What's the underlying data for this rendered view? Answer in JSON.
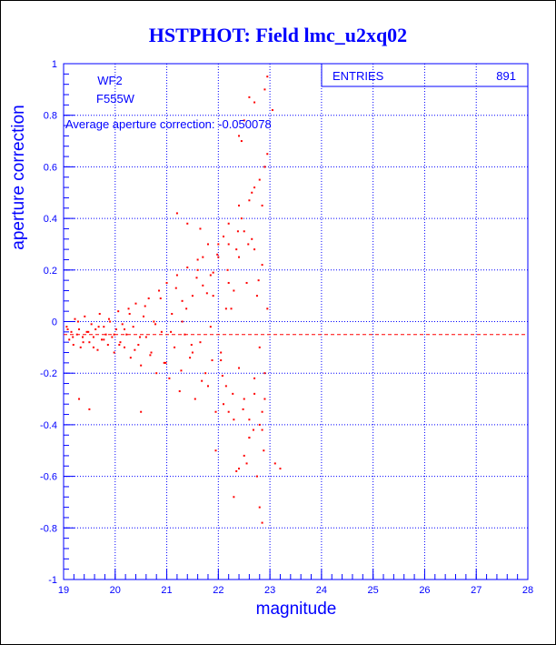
{
  "chart_data": {
    "type": "scatter",
    "title": "HSTPHOT: Field lmc_u2xq02",
    "xlabel": "magnitude",
    "ylabel": "aperture correction",
    "xlim": [
      19,
      28
    ],
    "ylim": [
      -1,
      1
    ],
    "x_ticks": [
      "19",
      "20",
      "21",
      "22",
      "23",
      "24",
      "25",
      "26",
      "27",
      "28"
    ],
    "y_ticks": [
      "-1",
      "-0.8",
      "-0.6",
      "-0.4",
      "-0.2",
      "0",
      "0.2",
      "0.4",
      "0.6",
      "0.8",
      "1"
    ],
    "grid": true,
    "annotations": {
      "chip": "WF2",
      "filter": "F555W",
      "average_text": "Average aperture correction: -0.050078"
    },
    "stats_box": {
      "label": "ENTRIES",
      "value": "891"
    },
    "average_line": -0.050078,
    "point_color": "#ff0000",
    "points_x": [
      19.06,
      19.11,
      19.15,
      19.19,
      19.22,
      19.26,
      19.3,
      19.33,
      19.37,
      19.41,
      19.45,
      19.5,
      19.54,
      19.58,
      19.62,
      19.66,
      19.7,
      19.74,
      19.78,
      19.82,
      19.86,
      19.9,
      19.94,
      19.98,
      20.02,
      20.06,
      20.1,
      20.14,
      20.18,
      20.22,
      20.26,
      20.3,
      20.35,
      20.4,
      20.45,
      20.5,
      20.55,
      20.6,
      20.65,
      20.7,
      20.75,
      20.8,
      20.85,
      20.9,
      20.95,
      21.0,
      21.05,
      21.1,
      21.15,
      21.2,
      21.25,
      21.3,
      21.35,
      21.4,
      21.45,
      21.5,
      21.55,
      21.6,
      21.65,
      21.7,
      21.75,
      21.8,
      21.85,
      21.9,
      21.95,
      22.0,
      22.05,
      22.1,
      22.15,
      22.2,
      22.25,
      22.3,
      22.35,
      22.4,
      22.45,
      22.5,
      22.55,
      22.6,
      22.65,
      22.7,
      22.75,
      22.8,
      22.85,
      22.9,
      22.95,
      19.08,
      19.18,
      19.28,
      19.38,
      19.48,
      19.58,
      19.68,
      19.78,
      19.88,
      19.98,
      20.08,
      20.18,
      20.28,
      20.38,
      20.48,
      20.58,
      20.68,
      20.78,
      20.88,
      20.98,
      21.08,
      21.18,
      21.28,
      21.38,
      21.48,
      21.58,
      21.68,
      21.78,
      21.88,
      21.98,
      22.08,
      22.18,
      22.28,
      22.38,
      22.48,
      22.58,
      22.68,
      22.78,
      22.88,
      21.3,
      21.6,
      21.9,
      22.2,
      22.5,
      22.8,
      22.9,
      22.7,
      22.6,
      22.4,
      22.2,
      21.2,
      21.5,
      21.8,
      22.1,
      22.4,
      22.7,
      22.3,
      22.6,
      22.85,
      22.9,
      22.55,
      22.65,
      22.45,
      22.75,
      22.8,
      21.7,
      22.0,
      22.2,
      22.5,
      22.85,
      22.35,
      22.15,
      21.4,
      21.95,
      22.05,
      21.65,
      21.85,
      19.3,
      19.5,
      20.5,
      22.85,
      22.95,
      22.9,
      22.7,
      22.6,
      23.05,
      23.1,
      23.2,
      22.4,
      22.3,
      22.8,
      22.85,
      22.9,
      22.95,
      22.7,
      22.6,
      22.5,
      22.4
    ],
    "points_y": [
      -0.02,
      -0.07,
      -0.04,
      -0.09,
      0.01,
      -0.05,
      -0.03,
      -0.1,
      -0.06,
      0.02,
      -0.04,
      -0.08,
      -0.01,
      -0.06,
      -0.03,
      -0.11,
      0.03,
      -0.07,
      -0.02,
      -0.05,
      -0.09,
      0.0,
      -0.06,
      -0.12,
      -0.03,
      0.04,
      -0.08,
      -0.01,
      -0.1,
      -0.05,
      0.05,
      -0.14,
      -0.02,
      0.07,
      -0.09,
      -0.17,
      0.02,
      -0.06,
      0.09,
      -0.12,
      0.0,
      -0.2,
      0.12,
      -0.04,
      -0.16,
      0.15,
      -0.22,
      0.03,
      -0.1,
      0.18,
      -0.27,
      0.08,
      -0.05,
      0.21,
      -0.14,
      0.1,
      -0.3,
      0.24,
      -0.08,
      0.14,
      -0.2,
      0.3,
      -0.02,
      0.19,
      -0.35,
      0.25,
      -0.12,
      0.33,
      -0.25,
      0.38,
      0.05,
      -0.38,
      0.28,
      -0.18,
      0.4,
      -0.3,
      0.15,
      -0.45,
      0.32,
      -0.22,
      0.1,
      -0.4,
      0.22,
      -0.3,
      0.05,
      -0.03,
      -0.06,
      0.0,
      -0.08,
      -0.04,
      -0.1,
      -0.02,
      -0.07,
      0.01,
      -0.05,
      -0.09,
      -0.03,
      0.03,
      -0.11,
      -0.06,
      0.06,
      -0.13,
      -0.01,
      0.09,
      -0.16,
      -0.04,
      0.13,
      -0.19,
      0.05,
      -0.09,
      0.17,
      -0.23,
      0.11,
      -0.15,
      0.26,
      -0.21,
      0.2,
      -0.28,
      0.35,
      -0.34,
      0.3,
      -0.42,
      0.16,
      -0.5,
      0.0,
      0.2,
      0.1,
      0.3,
      0.35,
      -0.1,
      -0.2,
      0.28,
      -0.38,
      0.45,
      -0.35,
      0.42,
      -0.12,
      -0.25,
      -0.32,
      0.25,
      -0.28,
      0.12,
      -0.45,
      0.45,
      0.6,
      -0.55,
      0.5,
      0.7,
      -0.6,
      0.55,
      0.25,
      0.3,
      0.15,
      -0.52,
      -0.42,
      -0.58,
      0.05,
      0.38,
      -0.5,
      -0.15,
      0.36,
      0.18,
      -0.3,
      -0.34,
      -0.35,
      -0.35,
      0.95,
      0.9,
      0.85,
      0.87,
      0.82,
      -0.55,
      -0.57,
      -0.57,
      -0.68,
      -0.72,
      -0.78,
      0.6,
      0.65,
      0.52,
      0.47,
      0.78,
      0.72,
      0.48,
      0.62
    ]
  }
}
